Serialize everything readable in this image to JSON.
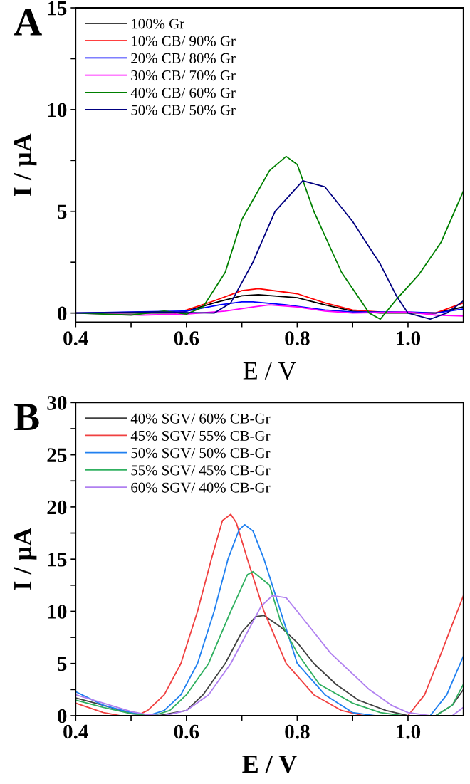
{
  "chart_data": [
    {
      "type": "line",
      "xlabel": "E / V",
      "ylabel": "I / µA",
      "annotations": [
        "A"
      ],
      "legend": "top left",
      "grid": false,
      "marker": "none",
      "line_style": "solid",
      "xlim": [
        0.4,
        1.1
      ],
      "ylim": [
        -0.45,
        15
      ],
      "xticks": [
        0.4,
        {
          "value": 0.5,
          "label": null
        },
        0.6,
        {
          "value": 0.7,
          "label": null
        },
        0.8,
        {
          "value": 0.9,
          "label": null
        },
        {
          "value": 1.0,
          "label": "1.0"
        }
      ],
      "yticks": [
        0,
        {
          "value": 2.5,
          "label": null
        },
        5,
        {
          "value": 7.5,
          "label": null
        },
        10,
        {
          "value": 12.5,
          "label": null
        },
        15
      ],
      "series": [
        {
          "name": "100% Gr",
          "color": "#000000",
          "x": [
            0.4,
            0.5,
            0.58,
            0.6,
            0.65,
            0.7,
            0.73,
            0.8,
            0.85,
            0.9,
            0.95,
            1.05,
            1.1
          ],
          "values": [
            0,
            0,
            0,
            0.1,
            0.5,
            0.85,
            0.9,
            0.75,
            0.4,
            0.1,
            0,
            0,
            0.3
          ]
        },
        {
          "name": "10% CB/ 90% Gr",
          "color": "#ff0000",
          "x": [
            0.58,
            0.6,
            0.65,
            0.7,
            0.73,
            0.8,
            0.85,
            0.9,
            0.95,
            1.05,
            1.1
          ],
          "values": [
            0,
            0.15,
            0.6,
            1.1,
            1.2,
            0.95,
            0.5,
            0.15,
            0.05,
            0,
            0.5
          ]
        },
        {
          "name": "20% CB/ 80% Gr",
          "color": "#0000ff",
          "x": [
            0.4,
            0.5,
            0.6,
            0.66,
            0.7,
            0.72,
            0.78,
            0.85,
            0.9,
            1.0,
            1.05,
            1.1
          ],
          "values": [
            0,
            0.05,
            0.1,
            0.4,
            0.55,
            0.55,
            0.4,
            0.15,
            0.05,
            0.05,
            0,
            0.2
          ]
        },
        {
          "name": "30% CB/ 70% Gr",
          "color": "#ff00ff",
          "x": [
            0.4,
            0.52,
            0.6,
            0.67,
            0.72,
            0.75,
            0.8,
            0.85,
            0.9,
            1.0,
            1.05,
            1.1
          ],
          "values": [
            0,
            -0.1,
            -0.05,
            0.1,
            0.3,
            0.4,
            0.3,
            0.1,
            0,
            0.05,
            -0.1,
            -0.15
          ]
        },
        {
          "name": "40% CB/ 60% Gr",
          "color": "#008000",
          "x": [
            0.4,
            0.5,
            0.56,
            0.6,
            0.63,
            0.67,
            0.7,
            0.75,
            0.78,
            0.8,
            0.83,
            0.88,
            0.93,
            0.95,
            0.98,
            1.02,
            1.06,
            1.1
          ],
          "values": [
            0,
            -0.1,
            0.1,
            -0.05,
            0.3,
            2,
            4.6,
            7,
            7.7,
            7.3,
            5,
            2,
            0,
            -0.3,
            0.7,
            1.9,
            3.5,
            6
          ]
        },
        {
          "name": "50% CB/ 50% Gr",
          "color": "#000080",
          "x": [
            0.4,
            0.55,
            0.65,
            0.68,
            0.72,
            0.76,
            0.81,
            0.85,
            0.9,
            0.95,
            0.98,
            1.0,
            1.04,
            1.07,
            1.1
          ],
          "values": [
            0,
            0.05,
            0,
            0.5,
            2.5,
            5,
            6.5,
            6.2,
            4.5,
            2.4,
            0.8,
            0,
            -0.3,
            0,
            0.6
          ]
        }
      ]
    },
    {
      "type": "line",
      "xlabel": "E / V",
      "ylabel": "I / µA",
      "annotations": [
        "B"
      ],
      "legend": "top left",
      "grid": false,
      "marker": "none",
      "line_style": "solid",
      "xlim": [
        0.4,
        1.1
      ],
      "ylim": [
        0,
        30
      ],
      "xticks": [
        0.4,
        {
          "value": 0.5,
          "label": null
        },
        0.6,
        {
          "value": 0.7,
          "label": null
        },
        0.8,
        {
          "value": 0.9,
          "label": null
        },
        {
          "value": 1.0,
          "label": "1.0"
        }
      ],
      "yticks": [
        0,
        {
          "value": 2.5,
          "label": null
        },
        5,
        {
          "value": 7.5,
          "label": null
        },
        10,
        {
          "value": 12.5,
          "label": null
        },
        15,
        {
          "value": 17.5,
          "label": null
        },
        20,
        {
          "value": 22.5,
          "label": null
        },
        25,
        {
          "value": 27.5,
          "label": null
        },
        30
      ],
      "series": [
        {
          "name": "40% SGV/ 60% CB-Gr",
          "color": "#404040",
          "x": [
            0.4,
            0.45,
            0.5,
            0.55,
            0.6,
            0.63,
            0.67,
            0.7,
            0.725,
            0.74,
            0.77,
            0.8,
            0.83,
            0.87,
            0.91,
            0.96,
            1.0,
            1.05,
            1.08,
            1.1
          ],
          "values": [
            1.7,
            1,
            0.2,
            0,
            0.5,
            2,
            5,
            8,
            9.5,
            9.6,
            8.5,
            7,
            5,
            3,
            1.5,
            0.5,
            0,
            0,
            1,
            2.5
          ]
        },
        {
          "name": "45% SGV/ 55% CB-Gr",
          "color": "#f04040",
          "x": [
            0.4,
            0.45,
            0.48,
            0.51,
            0.53,
            0.56,
            0.59,
            0.62,
            0.645,
            0.665,
            0.68,
            0.69,
            0.71,
            0.74,
            0.78,
            0.83,
            0.88,
            0.92,
            1.0,
            1.03,
            1.06,
            1.1
          ],
          "values": [
            1.2,
            0.3,
            0,
            0,
            0.5,
            2,
            5,
            10,
            15,
            18.7,
            19.3,
            18.5,
            15,
            10,
            5,
            2,
            0.5,
            0,
            0,
            2,
            6,
            11.5
          ]
        },
        {
          "name": "50% SGV/ 50% CB-Gr",
          "color": "#2080f0",
          "x": [
            0.4,
            0.45,
            0.5,
            0.53,
            0.56,
            0.59,
            0.62,
            0.65,
            0.675,
            0.695,
            0.705,
            0.72,
            0.74,
            0.77,
            0.8,
            0.85,
            0.9,
            0.94,
            1.04,
            1.07,
            1.1
          ],
          "values": [
            2.3,
            1,
            0.3,
            0,
            0.5,
            2,
            5,
            10,
            15,
            17.8,
            18.3,
            17.7,
            15,
            10,
            5,
            2,
            0.3,
            0,
            0,
            2,
            5.7
          ]
        },
        {
          "name": "55% SGV/ 45% CB-Gr",
          "color": "#30b060",
          "x": [
            0.4,
            0.45,
            0.5,
            0.54,
            0.57,
            0.6,
            0.64,
            0.68,
            0.71,
            0.72,
            0.75,
            0.77,
            0.8,
            0.84,
            0.9,
            0.95,
            0.99,
            1.05,
            1.08,
            1.1
          ],
          "values": [
            1.5,
            0.8,
            0.2,
            0,
            0.5,
            2,
            5,
            10,
            13.5,
            13.8,
            12.5,
            9,
            6,
            3,
            1.2,
            0.3,
            0,
            0,
            1,
            3
          ]
        },
        {
          "name": "60% SGV/ 40% CB-Gr",
          "color": "#b080f0",
          "x": [
            0.4,
            0.45,
            0.5,
            0.53,
            0.56,
            0.6,
            0.64,
            0.68,
            0.71,
            0.735,
            0.755,
            0.78,
            0.8,
            0.83,
            0.86,
            0.9,
            0.93,
            0.97,
            1.0,
            1.04,
            1.08,
            1.1
          ],
          "values": [
            2,
            1.2,
            0.4,
            0.1,
            0,
            0.5,
            2,
            5,
            8,
            10.5,
            11.5,
            11.3,
            10,
            8,
            6,
            4,
            2.5,
            1,
            0.3,
            0,
            0,
            0.8
          ]
        }
      ]
    }
  ]
}
